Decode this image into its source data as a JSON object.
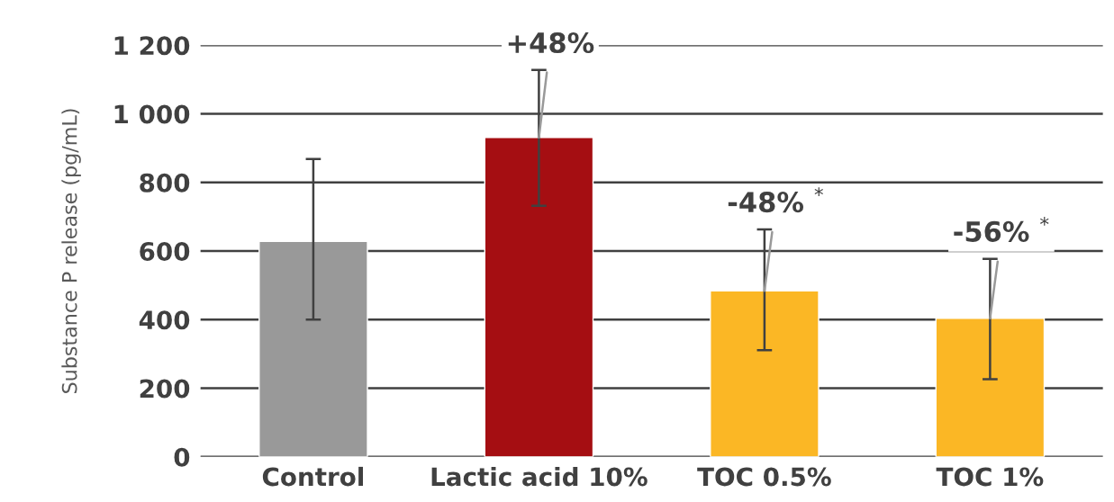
{
  "chart_data": {
    "type": "bar",
    "ylabel": "Substance P release (pg/mL)",
    "categories": [
      "Control",
      "Lactic acid 10%",
      "TOC 0.5%",
      "TOC 1%"
    ],
    "values": [
      628,
      931,
      484,
      404
    ],
    "colors": [
      "#999999",
      "#a50e12",
      "#fbb725",
      "#fbb725"
    ],
    "errors": [
      [
        400,
        868
      ],
      [
        732,
        1128
      ],
      [
        311,
        663
      ],
      [
        226,
        577
      ]
    ],
    "ylim": [
      0,
      1200
    ],
    "yticks": [
      {
        "value": 0,
        "label": "0"
      },
      {
        "value": 200,
        "label": "200"
      },
      {
        "value": 400,
        "label": "400"
      },
      {
        "value": 600,
        "label": "600"
      },
      {
        "value": 800,
        "label": "800"
      },
      {
        "value": 1000,
        "label": "1 000"
      },
      {
        "value": 1200,
        "label": "1 200"
      }
    ],
    "grid": "y",
    "annotations": [
      {
        "text": "+48%",
        "x": "Lactic acid 10%",
        "y": 931
      },
      {
        "text": "-48% $^{*}$",
        "x": "TOC 0.5%",
        "y": 484
      },
      {
        "text": "-56% $^{*}$",
        "x": "TOC 1%",
        "y": 404
      }
    ]
  }
}
